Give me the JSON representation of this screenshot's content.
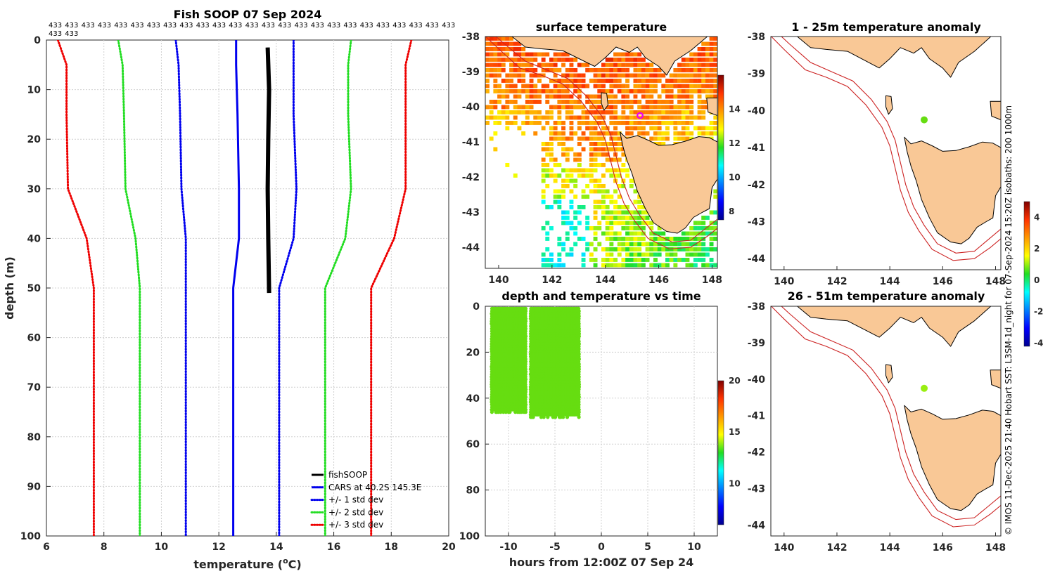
{
  "chart_data": [
    {
      "id": "profile",
      "type": "line",
      "title": "Fish SOOP 07 Sep 2024",
      "xlabel": "temperature (°C)",
      "xlabel_main": "temperature (",
      "xlabel_sup": "o",
      "xlabel_end": "C)",
      "ylabel": "depth (m)",
      "xlim": [
        6,
        20
      ],
      "ylim": [
        0,
        100
      ],
      "y_reversed": true,
      "xticks": [
        6,
        8,
        10,
        12,
        14,
        16,
        18,
        20
      ],
      "yticks": [
        0,
        10,
        20,
        30,
        40,
        50,
        60,
        70,
        80,
        90,
        100
      ],
      "grid": true,
      "legend_position": "bottom-right",
      "count_labels": [
        "433",
        "433",
        "433",
        "433",
        "433",
        "433",
        "433",
        "433",
        "433",
        "433",
        "433",
        "433",
        "433",
        "433",
        "433",
        "433",
        "433",
        "433",
        "433",
        "433",
        "433",
        "433",
        "433",
        "433",
        "433",
        "433",
        "433"
      ],
      "series": [
        {
          "name": "fishSOOP",
          "color": "#000000",
          "style": "solid",
          "width": 6,
          "x": [
            13.7,
            13.75,
            13.72,
            13.7,
            13.72,
            13.75
          ],
          "y": [
            1.5,
            10,
            20,
            30,
            40,
            51
          ]
        },
        {
          "name": "CARS at 40.2S 145.3E",
          "color": "#0000ee",
          "style": "solid",
          "width": 3,
          "x": [
            12.6,
            12.6,
            12.65,
            12.7,
            12.7,
            12.5,
            12.5,
            12.5
          ],
          "y": [
            0,
            5,
            15,
            30,
            40,
            50,
            75,
            100
          ]
        },
        {
          "name": "+/- 1 std dev",
          "color": "#0000ee",
          "style": "dotted",
          "width": 3,
          "x": [
            10.5,
            10.6,
            10.65,
            10.7,
            10.85,
            10.85,
            10.85
          ],
          "y": [
            0,
            5,
            15,
            30,
            40,
            50,
            100
          ]
        },
        {
          "name": "+/- 1 std dev (upper)",
          "color": "#0000ee",
          "style": "dotted",
          "width": 3,
          "x": [
            14.6,
            14.6,
            14.6,
            14.7,
            14.6,
            14.1,
            14.1
          ],
          "y": [
            0,
            5,
            15,
            30,
            40,
            50,
            100
          ]
        },
        {
          "name": "+/- 2 std dev",
          "color": "#22dd22",
          "style": "dotted",
          "width": 3,
          "x": [
            8.5,
            8.65,
            8.7,
            8.75,
            9.1,
            9.25,
            9.25
          ],
          "y": [
            0,
            5,
            15,
            30,
            40,
            50,
            100
          ]
        },
        {
          "name": "+/- 2 std dev (upper)",
          "color": "#22dd22",
          "style": "dotted",
          "width": 3,
          "x": [
            16.6,
            16.5,
            16.5,
            16.6,
            16.4,
            15.7,
            15.7
          ],
          "y": [
            0,
            5,
            15,
            30,
            40,
            50,
            100
          ]
        },
        {
          "name": "+/- 3 std dev",
          "color": "#ee0000",
          "style": "dotted",
          "width": 3,
          "x": [
            6.4,
            6.7,
            6.7,
            6.75,
            7.4,
            7.65,
            7.65
          ],
          "y": [
            0,
            5,
            15,
            30,
            40,
            50,
            100
          ]
        },
        {
          "name": "+/- 3 std dev (upper)",
          "color": "#ee0000",
          "style": "dotted",
          "width": 3,
          "x": [
            18.7,
            18.5,
            18.5,
            18.5,
            18.1,
            17.3,
            17.3
          ],
          "y": [
            0,
            5,
            15,
            30,
            40,
            50,
            100
          ]
        }
      ],
      "legend": [
        {
          "label": "fishSOOP",
          "color": "#000000",
          "style": "solid"
        },
        {
          "label": "CARS at 40.2S 145.3E",
          "color": "#0000ee",
          "style": "solid"
        },
        {
          "label": "+/- 1 std dev",
          "color": "#0000ee",
          "style": "dotted"
        },
        {
          "label": "+/- 2 std dev",
          "color": "#22dd22",
          "style": "dotted"
        },
        {
          "label": "+/- 3 std dev",
          "color": "#ee0000",
          "style": "dotted"
        }
      ]
    },
    {
      "id": "sst_map",
      "type": "heatmap",
      "title": "surface temperature",
      "xlim": [
        139.5,
        148.2
      ],
      "ylim": [
        -44.6,
        -38
      ],
      "xticks": [
        140,
        142,
        144,
        146,
        148
      ],
      "yticks": [
        -38,
        -39,
        -40,
        -41,
        -42,
        -43,
        -44
      ],
      "colorbar": {
        "min": 7.5,
        "max": 16,
        "ticks": [
          8,
          10,
          12,
          14
        ]
      },
      "marker": {
        "lon": 145.3,
        "lat": -40.25,
        "color": "#ee00ee"
      }
    },
    {
      "id": "depth_time",
      "type": "scatter",
      "title": "depth and temperature vs time",
      "xlabel": "hours from 12:00Z 07 Sep 24",
      "xlim": [
        -12.5,
        12.5
      ],
      "ylim": [
        0,
        100
      ],
      "y_reversed": true,
      "xticks": [
        -10,
        -5,
        0,
        5,
        10
      ],
      "yticks": [
        0,
        20,
        40,
        60,
        80,
        100
      ],
      "colorbar": {
        "min": 6,
        "max": 20,
        "ticks": [
          10,
          15,
          20
        ]
      },
      "point_color": "#66dd11",
      "groups": [
        {
          "t_start": -11.8,
          "t_end": -8.1,
          "depth_min": 1,
          "depth_max": 47
        },
        {
          "t_start": -7.6,
          "t_end": -2.3,
          "depth_min": 1,
          "depth_max": 49
        }
      ]
    },
    {
      "id": "anom_top",
      "type": "heatmap",
      "title": "1 - 25m temperature anomaly",
      "xlim": [
        139.5,
        148.2
      ],
      "ylim": [
        -44.3,
        -38
      ],
      "xticks": [
        140,
        142,
        144,
        146,
        148
      ],
      "yticks": [
        -38,
        -39,
        -40,
        -41,
        -42,
        -43,
        -44
      ],
      "point": {
        "lon": 145.3,
        "lat": -40.25,
        "value": 0.8,
        "color": "#66dd11"
      }
    },
    {
      "id": "anom_bottom",
      "type": "heatmap",
      "title": "26 - 51m temperature anomaly",
      "xlim": [
        139.5,
        148.2
      ],
      "ylim": [
        -44.3,
        -38
      ],
      "xticks": [
        140,
        142,
        144,
        146,
        148
      ],
      "yticks": [
        -38,
        -39,
        -40,
        -41,
        -42,
        -43,
        -44
      ],
      "point": {
        "lon": 145.3,
        "lat": -40.25,
        "value": 1.2,
        "color": "#99ee11"
      },
      "colorbar": {
        "min": -4.2,
        "max": 5,
        "ticks": [
          4,
          2,
          0,
          -2,
          -4
        ]
      }
    }
  ],
  "credit": "© IMOS 11-Dec-2025 21:40 Hobart SST: L3SM-1d_night for 07-Sep-2024 15:20Z isobaths: 200  1000m",
  "colors": {
    "land": "#f9c896",
    "isobath": "#cc2222",
    "grid": "#cccccc"
  }
}
